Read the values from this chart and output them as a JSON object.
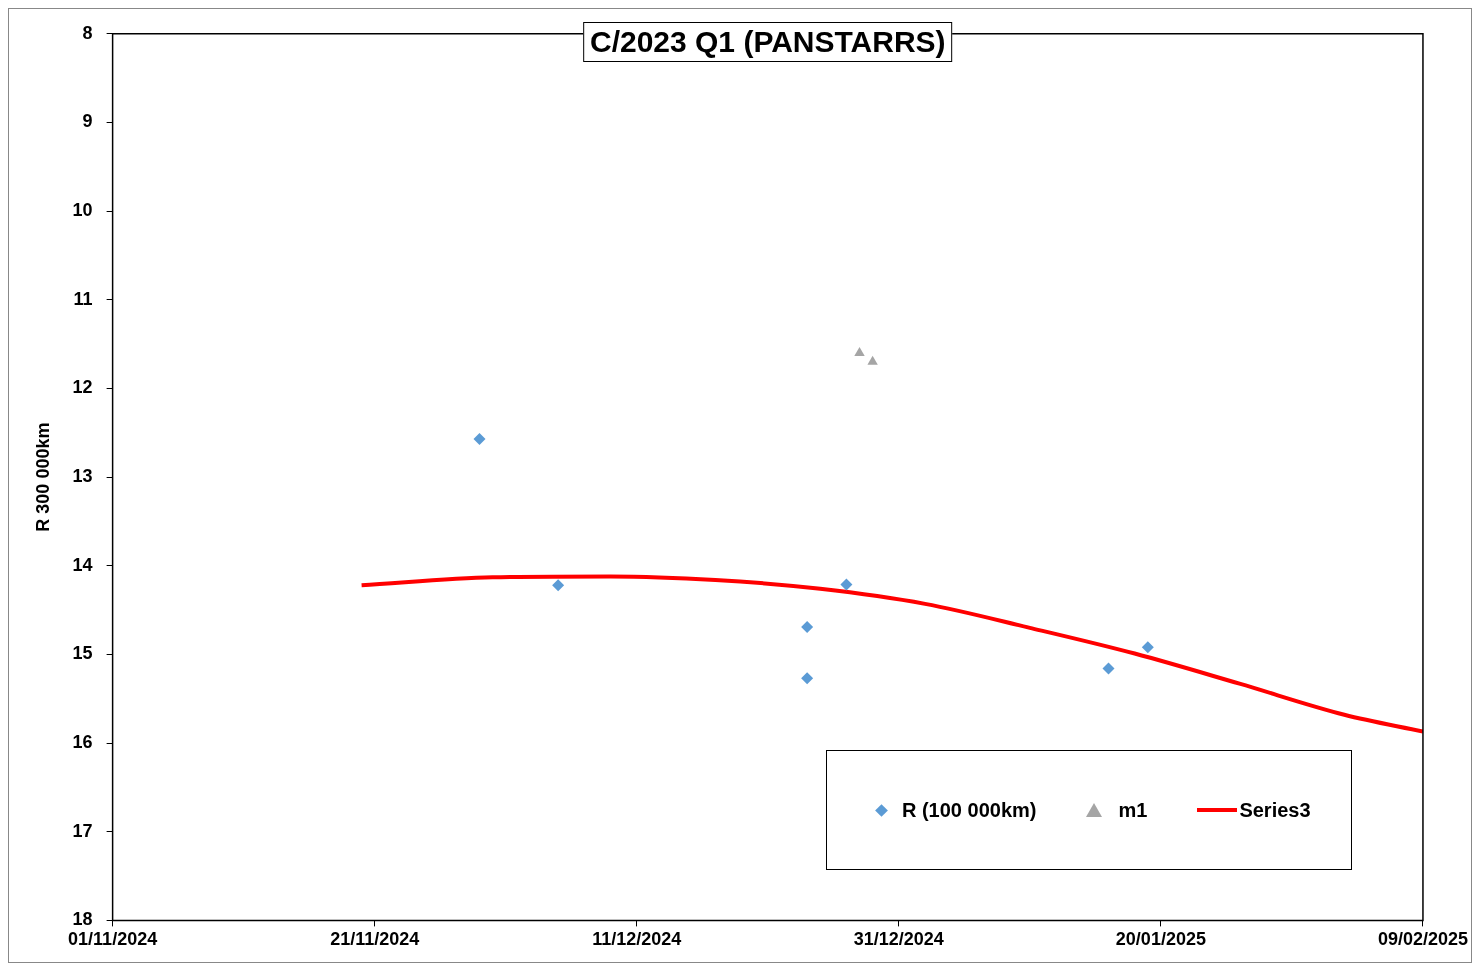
{
  "chart_data": {
    "type": "scatter",
    "title": "C/2023 Q1 (PANSTARRS)",
    "ylabel": "R 300 000km",
    "xlim": [
      "2024-11-01",
      "2025-02-09"
    ],
    "xticks": [
      {
        "value": "2024-11-01",
        "label": "01/11/2024"
      },
      {
        "value": "2024-11-21",
        "label": "21/11/2024"
      },
      {
        "value": "2024-12-11",
        "label": "11/12/2024"
      },
      {
        "value": "2024-12-31",
        "label": "31/12/2024"
      },
      {
        "value": "2025-01-20",
        "label": "20/01/2025"
      },
      {
        "value": "2025-02-09",
        "label": "09/02/2025"
      }
    ],
    "ylim": [
      18,
      8
    ],
    "yticks": [
      8,
      9,
      10,
      11,
      12,
      13,
      14,
      15,
      16,
      17,
      18
    ],
    "grid": false,
    "legend": "bottom right",
    "series": [
      {
        "name": "R (100 000km)",
        "type": "scatter",
        "marker": "diamond",
        "color": "#5b9bd5",
        "x": [
          "2024-11-29",
          "2024-12-05",
          "2024-12-24",
          "2024-12-24",
          "2024-12-27",
          "2025-01-16",
          "2025-01-19"
        ],
        "values": [
          12.57,
          14.22,
          14.69,
          15.27,
          14.21,
          15.16,
          14.92
        ]
      },
      {
        "name": "m1",
        "type": "scatter",
        "marker": "triangle",
        "color": "#a5a5a5",
        "x": [
          "2024-12-28",
          "2024-12-29"
        ],
        "values": [
          11.6,
          11.7
        ]
      },
      {
        "name": "Series3",
        "type": "line",
        "marker": "none",
        "color": "#ff0000",
        "x": [
          "2024-11-20",
          "2024-11-30",
          "2024-12-09",
          "2024-12-17",
          "2024-12-25",
          "2025-01-02",
          "2025-01-10",
          "2025-01-18",
          "2025-01-26",
          "2025-02-03",
          "2025-02-09"
        ],
        "values": [
          14.22,
          14.13,
          14.12,
          14.16,
          14.26,
          14.43,
          14.7,
          14.99,
          15.33,
          15.68,
          15.87
        ]
      }
    ]
  }
}
